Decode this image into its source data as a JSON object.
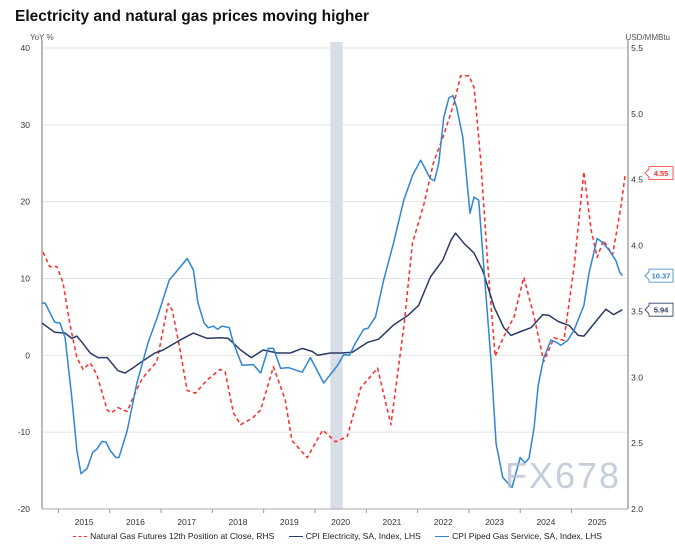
{
  "chart_data": {
    "type": "line",
    "title": "Electricity and natural gas prices moving higher",
    "y_left_label": "YoY %",
    "y_right_label": "USD/MMBtu",
    "y_left_range": [
      -20,
      40
    ],
    "y_left_ticks": [
      "40",
      "30",
      "20",
      "10",
      "0",
      "-10",
      "-20"
    ],
    "y_right_range": [
      2.0,
      5.5
    ],
    "y_right_ticks": [
      "5.5",
      "5.0",
      "4.5",
      "4.0",
      "3.5",
      "3.0",
      "2.5",
      "2.0"
    ],
    "x_range": [
      2014.68,
      2026.1
    ],
    "x_ticks": [
      "2015",
      "2016",
      "2017",
      "2018",
      "2019",
      "2020",
      "2021",
      "2022",
      "2023",
      "2024",
      "2025"
    ],
    "grid": "horizontal",
    "legend_position": "bottom",
    "recession_shading": [
      2020.3,
      2020.54
    ],
    "series": [
      {
        "name": "Natural Gas Futures 12th Position at Close, RHS",
        "axis": "right",
        "color": "#ff2a2a",
        "style": "dashed",
        "end_label": "4.55",
        "points": [
          [
            2014.7,
            3.95
          ],
          [
            2014.83,
            3.84
          ],
          [
            2014.97,
            3.84
          ],
          [
            2015.09,
            3.72
          ],
          [
            2015.22,
            3.41
          ],
          [
            2015.36,
            3.15
          ],
          [
            2015.48,
            3.06
          ],
          [
            2015.62,
            3.11
          ],
          [
            2015.75,
            3.02
          ],
          [
            2015.95,
            2.75
          ],
          [
            2016.04,
            2.73
          ],
          [
            2016.16,
            2.77
          ],
          [
            2016.34,
            2.74
          ],
          [
            2016.46,
            2.85
          ],
          [
            2016.63,
            2.99
          ],
          [
            2016.92,
            3.12
          ],
          [
            2017.14,
            3.56
          ],
          [
            2017.22,
            3.51
          ],
          [
            2017.37,
            3.21
          ],
          [
            2017.51,
            2.9
          ],
          [
            2017.67,
            2.88
          ],
          [
            2017.9,
            2.98
          ],
          [
            2018.15,
            3.06
          ],
          [
            2018.25,
            3.04
          ],
          [
            2018.41,
            2.73
          ],
          [
            2018.55,
            2.64
          ],
          [
            2018.78,
            2.69
          ],
          [
            2018.94,
            2.75
          ],
          [
            2019.19,
            3.08
          ],
          [
            2019.42,
            2.83
          ],
          [
            2019.55,
            2.52
          ],
          [
            2019.85,
            2.39
          ],
          [
            2020.15,
            2.6
          ],
          [
            2020.4,
            2.51
          ],
          [
            2020.63,
            2.55
          ],
          [
            2020.89,
            2.92
          ],
          [
            2021.22,
            3.07
          ],
          [
            2021.48,
            2.64
          ],
          [
            2021.73,
            3.38
          ],
          [
            2021.9,
            4.02
          ],
          [
            2022.12,
            4.31
          ],
          [
            2022.31,
            4.63
          ],
          [
            2022.51,
            4.84
          ],
          [
            2022.71,
            5.08
          ],
          [
            2022.84,
            5.29
          ],
          [
            2023.0,
            5.29
          ],
          [
            2023.1,
            5.2
          ],
          [
            2023.23,
            4.65
          ],
          [
            2023.37,
            3.84
          ],
          [
            2023.51,
            3.16
          ],
          [
            2023.68,
            3.31
          ],
          [
            2023.88,
            3.46
          ],
          [
            2024.07,
            3.76
          ],
          [
            2024.27,
            3.46
          ],
          [
            2024.46,
            3.12
          ],
          [
            2024.66,
            3.3
          ],
          [
            2024.85,
            3.28
          ],
          [
            2025.05,
            3.84
          ],
          [
            2025.24,
            4.56
          ],
          [
            2025.38,
            4.12
          ],
          [
            2025.5,
            3.91
          ],
          [
            2025.62,
            4.04
          ],
          [
            2025.8,
            3.93
          ],
          [
            2025.96,
            4.29
          ],
          [
            2026.05,
            4.55
          ]
        ]
      },
      {
        "name": "CPI Electricity, SA, Index, LHS",
        "axis": "left",
        "color": "#2b3a67",
        "style": "solid",
        "end_label": "5.94",
        "points": [
          [
            2014.68,
            4.2
          ],
          [
            2014.93,
            3.0
          ],
          [
            2015.13,
            2.9
          ],
          [
            2015.26,
            2.2
          ],
          [
            2015.36,
            2.5
          ],
          [
            2015.46,
            1.7
          ],
          [
            2015.62,
            0.3
          ],
          [
            2015.77,
            -0.3
          ],
          [
            2015.95,
            -0.3
          ],
          [
            2016.16,
            -2.0
          ],
          [
            2016.3,
            -2.3
          ],
          [
            2016.44,
            -1.7
          ],
          [
            2016.65,
            -0.7
          ],
          [
            2016.88,
            0.3
          ],
          [
            2017.04,
            0.7
          ],
          [
            2017.22,
            1.4
          ],
          [
            2017.43,
            2.2
          ],
          [
            2017.63,
            2.9
          ],
          [
            2017.9,
            2.2
          ],
          [
            2018.15,
            2.3
          ],
          [
            2018.31,
            2.2
          ],
          [
            2018.55,
            0.7
          ],
          [
            2018.76,
            -0.3
          ],
          [
            2018.99,
            0.7
          ],
          [
            2019.27,
            0.3
          ],
          [
            2019.52,
            0.3
          ],
          [
            2019.75,
            0.9
          ],
          [
            2019.95,
            0.5
          ],
          [
            2020.05,
            0.0
          ],
          [
            2020.3,
            0.3
          ],
          [
            2020.5,
            0.3
          ],
          [
            2020.73,
            0.4
          ],
          [
            2021.03,
            1.7
          ],
          [
            2021.24,
            2.1
          ],
          [
            2021.52,
            3.9
          ],
          [
            2021.81,
            5.2
          ],
          [
            2022.02,
            6.5
          ],
          [
            2022.25,
            10.2
          ],
          [
            2022.49,
            12.4
          ],
          [
            2022.65,
            15.0
          ],
          [
            2022.74,
            15.9
          ],
          [
            2022.9,
            14.6
          ],
          [
            2023.1,
            13.3
          ],
          [
            2023.27,
            11.0
          ],
          [
            2023.49,
            6.3
          ],
          [
            2023.68,
            3.6
          ],
          [
            2023.82,
            2.6
          ],
          [
            2024.01,
            3.1
          ],
          [
            2024.21,
            3.6
          ],
          [
            2024.44,
            5.3
          ],
          [
            2024.56,
            5.2
          ],
          [
            2024.74,
            4.4
          ],
          [
            2024.95,
            3.9
          ],
          [
            2025.13,
            2.6
          ],
          [
            2025.24,
            2.5
          ],
          [
            2025.52,
            4.8
          ],
          [
            2025.67,
            6.0
          ],
          [
            2025.82,
            5.3
          ],
          [
            2025.99,
            5.94
          ]
        ]
      },
      {
        "name": "CPI Piped Gas Service, SA, Index, LHS",
        "axis": "left",
        "color": "#2e86d4",
        "style": "solid",
        "end_label": "10.37",
        "points": [
          [
            2014.68,
            6.8
          ],
          [
            2014.74,
            6.8
          ],
          [
            2014.93,
            4.3
          ],
          [
            2015.03,
            4.2
          ],
          [
            2015.13,
            2.3
          ],
          [
            2015.26,
            -5.5
          ],
          [
            2015.36,
            -12.4
          ],
          [
            2015.44,
            -15.4
          ],
          [
            2015.56,
            -14.7
          ],
          [
            2015.67,
            -12.6
          ],
          [
            2015.75,
            -12.2
          ],
          [
            2015.85,
            -11.2
          ],
          [
            2015.93,
            -11.3
          ],
          [
            2016.01,
            -12.4
          ],
          [
            2016.12,
            -13.3
          ],
          [
            2016.18,
            -13.3
          ],
          [
            2016.34,
            -9.8
          ],
          [
            2016.53,
            -3.6
          ],
          [
            2016.75,
            1.7
          ],
          [
            2016.92,
            4.8
          ],
          [
            2017.16,
            9.8
          ],
          [
            2017.35,
            11.3
          ],
          [
            2017.51,
            12.6
          ],
          [
            2017.63,
            11.1
          ],
          [
            2017.72,
            6.8
          ],
          [
            2017.84,
            4.2
          ],
          [
            2017.92,
            3.6
          ],
          [
            2018.02,
            3.8
          ],
          [
            2018.1,
            3.4
          ],
          [
            2018.19,
            3.8
          ],
          [
            2018.33,
            3.6
          ],
          [
            2018.41,
            1.6
          ],
          [
            2018.58,
            -1.3
          ],
          [
            2018.8,
            -1.2
          ],
          [
            2018.94,
            -2.3
          ],
          [
            2019.09,
            0.9
          ],
          [
            2019.19,
            0.9
          ],
          [
            2019.33,
            -1.7
          ],
          [
            2019.48,
            -1.6
          ],
          [
            2019.75,
            -2.2
          ],
          [
            2019.91,
            -0.3
          ],
          [
            2020.17,
            -3.6
          ],
          [
            2020.44,
            -1.3
          ],
          [
            2020.56,
            0.1
          ],
          [
            2020.67,
            0.0
          ],
          [
            2020.79,
            1.6
          ],
          [
            2020.95,
            3.4
          ],
          [
            2021.03,
            3.5
          ],
          [
            2021.18,
            5.0
          ],
          [
            2021.34,
            9.8
          ],
          [
            2021.53,
            14.6
          ],
          [
            2021.73,
            20.2
          ],
          [
            2021.9,
            23.4
          ],
          [
            2022.06,
            25.4
          ],
          [
            2022.25,
            23.0
          ],
          [
            2022.33,
            22.7
          ],
          [
            2022.41,
            25.0
          ],
          [
            2022.51,
            31.0
          ],
          [
            2022.61,
            33.5
          ],
          [
            2022.69,
            33.8
          ],
          [
            2022.76,
            32.3
          ],
          [
            2022.88,
            28.4
          ],
          [
            2023.02,
            18.5
          ],
          [
            2023.1,
            20.6
          ],
          [
            2023.19,
            20.2
          ],
          [
            2023.29,
            11.5
          ],
          [
            2023.43,
            -0.7
          ],
          [
            2023.53,
            -11.5
          ],
          [
            2023.66,
            -15.9
          ],
          [
            2023.84,
            -17.2
          ],
          [
            2024.0,
            -13.3
          ],
          [
            2024.09,
            -14.0
          ],
          [
            2024.17,
            -13.4
          ],
          [
            2024.27,
            -9.4
          ],
          [
            2024.35,
            -3.9
          ],
          [
            2024.46,
            -0.3
          ],
          [
            2024.6,
            2.0
          ],
          [
            2024.7,
            1.7
          ],
          [
            2024.79,
            1.3
          ],
          [
            2024.93,
            2.0
          ],
          [
            2025.05,
            3.3
          ],
          [
            2025.24,
            6.5
          ],
          [
            2025.34,
            10.7
          ],
          [
            2025.5,
            15.2
          ],
          [
            2025.62,
            14.6
          ],
          [
            2025.73,
            13.7
          ],
          [
            2025.86,
            12.4
          ],
          [
            2025.94,
            10.8
          ],
          [
            2025.99,
            10.37
          ]
        ]
      }
    ]
  },
  "watermark": "FX678"
}
